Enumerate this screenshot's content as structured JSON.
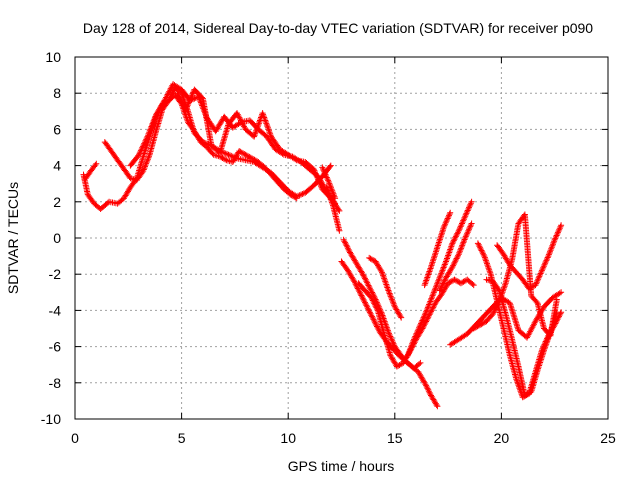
{
  "chart_data": {
    "type": "scatter",
    "title": "Day 128 of 2014, Sidereal Day-to-day VTEC variation (SDTVAR) for receiver p090",
    "xlabel": "GPS time / hours",
    "ylabel": "SDTVAR / TECUs",
    "xlim": [
      0,
      25
    ],
    "ylim": [
      -10,
      10
    ],
    "xticks": [
      0,
      5,
      10,
      15,
      20,
      25
    ],
    "yticks": [
      -10,
      -8,
      -6,
      -4,
      -2,
      0,
      2,
      4,
      6,
      8,
      10
    ],
    "grid": true,
    "legend": "none",
    "marker": "+",
    "series_color": "#ff0000",
    "tracks": [
      {
        "x": [
          0.4,
          0.6,
          0.9,
          1.2,
          1.6,
          2.0,
          2.3,
          2.6,
          2.9,
          3.2,
          3.5,
          3.8,
          4.1,
          4.4,
          4.7,
          5.0,
          5.3,
          5.6,
          5.9,
          6.2,
          6.5,
          6.8,
          7.1,
          7.4,
          7.7,
          8.0,
          8.3,
          8.6,
          8.9,
          9.2,
          9.5,
          9.8,
          10.1,
          10.4
        ],
        "y": [
          3.5,
          2.4,
          1.9,
          1.6,
          2.0,
          1.9,
          2.2,
          2.8,
          3.3,
          4.5,
          5.6,
          6.7,
          7.4,
          7.6,
          7.9,
          7.4,
          6.4,
          5.9,
          5.3,
          5.0,
          4.6,
          4.5,
          4.3,
          4.2,
          4.8,
          4.6,
          4.4,
          4.2,
          3.9,
          3.5,
          3.1,
          2.7,
          2.4,
          2.2
        ]
      },
      {
        "x": [
          0.5,
          0.8,
          1.0
        ],
        "y": [
          3.3,
          3.8,
          4.1
        ]
      },
      {
        "x": [
          1.4,
          1.7,
          2.0,
          2.3,
          2.6,
          2.9,
          3.2,
          3.5,
          3.8,
          4.1,
          4.4,
          4.7,
          5.0,
          5.3,
          5.6,
          6.0,
          6.4,
          6.8,
          7.2,
          7.6,
          8.0,
          8.4,
          8.8,
          9.2,
          9.6,
          10.0,
          10.4,
          10.8,
          11.2,
          11.6,
          12.0
        ],
        "y": [
          5.3,
          4.8,
          4.3,
          3.8,
          3.3,
          3.2,
          3.7,
          4.6,
          5.9,
          7.1,
          7.6,
          8.3,
          8.0,
          7.0,
          5.8,
          5.3,
          5.1,
          4.8,
          4.6,
          4.4,
          4.3,
          4.2,
          3.9,
          3.6,
          3.1,
          2.6,
          2.3,
          2.5,
          2.9,
          3.4,
          4.0
        ]
      },
      {
        "x": [
          2.6,
          3.0,
          3.4,
          3.8,
          4.2,
          4.6,
          5.0,
          5.4,
          5.8,
          6.2,
          6.6,
          7.0,
          7.4,
          7.8,
          8.2,
          8.6,
          9.0,
          9.4,
          9.8,
          10.2,
          10.6,
          11.0,
          11.4,
          11.8,
          12.2
        ],
        "y": [
          4.0,
          4.6,
          5.6,
          6.8,
          7.6,
          8.5,
          8.2,
          7.6,
          7.8,
          6.6,
          5.9,
          6.7,
          6.1,
          6.4,
          6.5,
          6.0,
          5.6,
          4.9,
          4.6,
          4.5,
          4.2,
          3.8,
          3.4,
          2.6,
          1.9
        ]
      },
      {
        "x": [
          4.8,
          5.2,
          5.6,
          6.0,
          6.4,
          6.8,
          7.2,
          7.6,
          8.0,
          8.4,
          8.8,
          9.2,
          9.6,
          10.0,
          10.4,
          10.8,
          11.2,
          11.6,
          12.0,
          12.4
        ],
        "y": [
          8.0,
          7.1,
          8.2,
          7.7,
          5.1,
          4.7,
          6.3,
          6.9,
          6.0,
          5.6,
          6.9,
          5.6,
          4.9,
          4.6,
          4.3,
          4.2,
          3.8,
          2.7,
          2.2,
          1.5
        ]
      },
      {
        "x": [
          12.5,
          12.8,
          13.1,
          13.4,
          13.7,
          14.0,
          14.3,
          14.6,
          14.9,
          15.2,
          15.5,
          15.8,
          16.1,
          16.4,
          16.7,
          17.0
        ],
        "y": [
          -1.3,
          -1.8,
          -2.4,
          -3.1,
          -3.8,
          -4.5,
          -5.2,
          -5.7,
          -6.1,
          -6.5,
          -6.8,
          -7.1,
          -7.4,
          -8.0,
          -8.7,
          -9.3
        ]
      },
      {
        "x": [
          12.6,
          12.9,
          13.2,
          13.5,
          13.8,
          14.1,
          14.4,
          14.7,
          15.0,
          15.3,
          15.6,
          15.9,
          16.2
        ],
        "y": [
          -0.1,
          -0.8,
          -1.4,
          -2.0,
          -2.7,
          -3.4,
          -4.2,
          -5.2,
          -6.0,
          -6.5,
          -6.9,
          -7.2,
          -6.9
        ]
      },
      {
        "x": [
          13.3,
          13.6,
          13.9,
          14.2,
          14.5,
          14.8,
          15.1,
          15.4,
          15.7,
          16.0,
          16.3,
          16.6,
          16.9,
          17.2,
          17.5,
          17.8,
          18.1,
          18.4,
          18.7
        ],
        "y": [
          -2.5,
          -2.9,
          -3.3,
          -4.0,
          -5.3,
          -6.5,
          -7.1,
          -6.9,
          -6.3,
          -5.6,
          -5.0,
          -4.3,
          -3.6,
          -3.1,
          -2.5,
          -2.3,
          -2.5,
          -2.3,
          -2.6
        ]
      },
      {
        "x": [
          13.8,
          14.1,
          14.4,
          14.7,
          15.0,
          15.3
        ],
        "y": [
          -1.1,
          -1.3,
          -1.9,
          -2.9,
          -3.8,
          -4.4
        ]
      },
      {
        "x": [
          15.6,
          15.9,
          16.2,
          16.5,
          16.8,
          17.1,
          17.4,
          17.7,
          18.0,
          18.3,
          18.6
        ],
        "y": [
          -6.5,
          -5.6,
          -4.8,
          -4.0,
          -3.1,
          -2.2,
          -1.3,
          -0.3,
          0.4,
          1.2,
          2.0
        ]
      },
      {
        "x": [
          16.4,
          16.7,
          17.0,
          17.3,
          17.6
        ],
        "y": [
          -2.6,
          -1.6,
          -0.5,
          0.6,
          1.4
        ]
      },
      {
        "x": [
          17.1,
          17.4,
          17.7,
          18.0,
          18.3,
          18.6
        ],
        "y": [
          -2.9,
          -2.2,
          -1.6,
          -0.9,
          0.0,
          0.8
        ]
      },
      {
        "x": [
          17.6,
          18.0,
          18.4,
          18.8,
          19.2,
          19.6,
          20.0,
          20.4,
          20.8,
          21.2,
          21.6,
          22.0,
          22.4,
          22.8
        ],
        "y": [
          -5.9,
          -5.6,
          -5.3,
          -4.8,
          -4.3,
          -3.8,
          -3.3,
          -3.6,
          -5.1,
          -5.5,
          -4.6,
          -3.8,
          -3.3,
          -3.0
        ]
      },
      {
        "x": [
          18.7,
          19.0,
          19.3,
          19.6,
          19.9,
          20.2,
          20.5,
          20.8,
          21.1,
          21.4,
          21.7,
          22.0,
          22.3,
          22.6
        ],
        "y": [
          -5.0,
          -4.8,
          -4.6,
          -4.2,
          -3.5,
          -2.5,
          -1.2,
          0.8,
          1.3,
          -3.2,
          -3.6,
          -5.0,
          -5.4,
          -3.4
        ]
      },
      {
        "x": [
          18.9,
          19.2,
          19.5,
          19.8,
          20.1,
          20.4,
          20.7,
          21.0,
          21.3,
          21.6,
          21.9,
          22.2,
          22.5,
          22.8
        ],
        "y": [
          -0.3,
          -1.0,
          -2.0,
          -3.5,
          -5.0,
          -6.5,
          -7.8,
          -8.8,
          -8.6,
          -7.4,
          -6.2,
          -5.4,
          -4.8,
          -4.1
        ]
      },
      {
        "x": [
          19.3,
          19.6,
          19.9,
          20.2,
          20.5,
          20.8,
          21.1,
          21.4,
          21.7,
          22.0,
          22.3,
          22.6
        ],
        "y": [
          -2.3,
          -2.4,
          -2.9,
          -4.2,
          -5.6,
          -7.1,
          -8.7,
          -8.5,
          -7.3,
          -6.2,
          -5.2,
          -4.1
        ]
      },
      {
        "x": [
          19.8,
          20.1,
          20.4,
          20.7,
          21.0,
          21.3,
          21.6,
          21.9,
          22.2,
          22.5,
          22.8
        ],
        "y": [
          -0.4,
          -0.9,
          -1.5,
          -1.9,
          -2.3,
          -2.8,
          -2.6,
          -1.8,
          -1.0,
          -0.1,
          0.7
        ]
      },
      {
        "x": [
          11.8,
          12.1,
          12.4
        ],
        "y": [
          2.8,
          1.8,
          0.4
        ]
      },
      {
        "x": [
          11.6,
          11.9,
          12.2
        ],
        "y": [
          3.9,
          3.1,
          2.2
        ]
      }
    ]
  }
}
